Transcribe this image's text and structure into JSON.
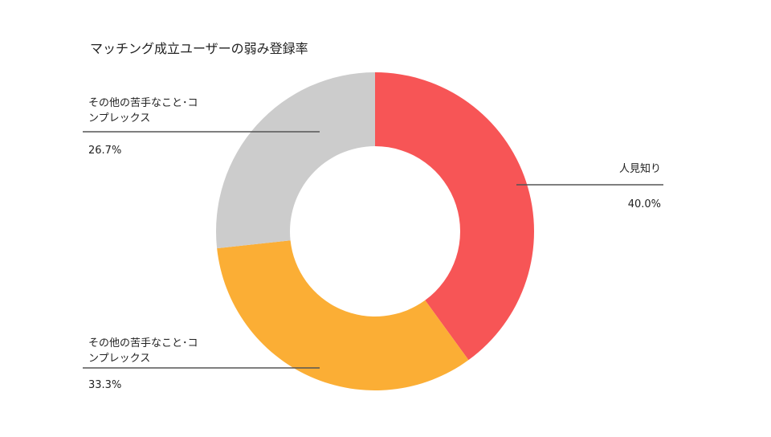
{
  "chart_data": {
    "type": "pie",
    "donut": true,
    "title": "マッチング成立ユーザーの弱み登録率",
    "slices": [
      {
        "label": "人見知り",
        "value": 40.0,
        "value_label": "40.0%",
        "color": "#f75556"
      },
      {
        "label": "その他の苦手なこと･コンプレックス",
        "value": 33.3,
        "value_label": "33.3%",
        "color": "#fbae35"
      },
      {
        "label": "その他の苦手なこと･コンプレックス",
        "value": 26.7,
        "value_label": "26.7%",
        "color": "#cccccc"
      }
    ],
    "start_angle_deg": 0,
    "direction": "clockwise",
    "legend": "none"
  }
}
